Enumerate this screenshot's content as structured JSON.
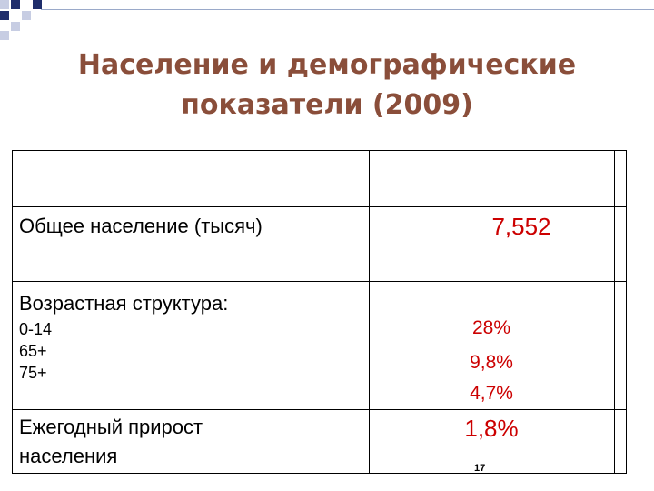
{
  "slide": {
    "title_line1": "Население и демографические",
    "title_line2": "показатели (2009)",
    "page_number": "17"
  },
  "table": {
    "header": [
      "",
      ""
    ],
    "rows": [
      {
        "label": "Общее население (тысяч)",
        "value": "7,552"
      },
      {
        "label": "Возрастная структура:",
        "sub_labels": [
          "0-14",
          "65+",
          "75+"
        ],
        "sub_values": [
          "28%",
          "9,8%",
          "4,7%"
        ]
      },
      {
        "label_line1": "Ежегодный прирост",
        "label_line2": "населения",
        "value": "1,8%"
      }
    ]
  },
  "colors": {
    "title": "#8a4e3a",
    "values": "#cc0000",
    "decor_dark": "#1f2d6b",
    "decor_light": "#c7cde3"
  }
}
